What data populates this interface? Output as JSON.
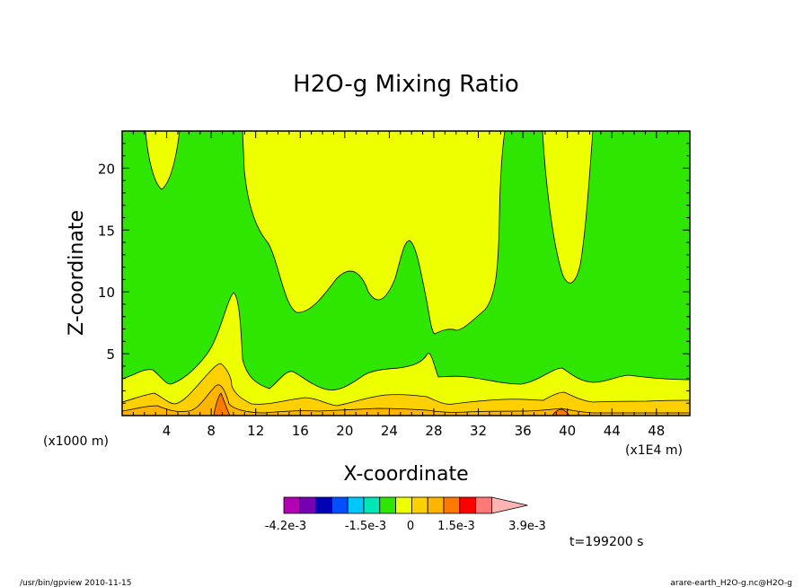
{
  "chart_data": {
    "type": "contour",
    "title": "H2O-g Mixing Ratio",
    "xlabel": "X-coordinate",
    "ylabel": "Z-coordinate",
    "x_unit_note": "(x1E4 m)",
    "y_unit_note": "(x1000 m)",
    "x_ticks": [
      4,
      8,
      12,
      16,
      20,
      24,
      28,
      32,
      36,
      40,
      44,
      48
    ],
    "y_ticks": [
      5,
      10,
      15,
      20
    ],
    "xlim": [
      0,
      51
    ],
    "ylim": [
      0,
      23
    ],
    "colorbar": {
      "colors": [
        "#b400b4",
        "#7800b4",
        "#0000b4",
        "#0050ff",
        "#00c8ff",
        "#00e6b4",
        "#2ee600",
        "#eeff00",
        "#ffd000",
        "#ffb400",
        "#ff7800",
        "#ff0000",
        "#ff7878",
        "#ffb4b4"
      ],
      "labels": [
        "-4.2e-3",
        "-1.5e-3",
        "0",
        "1.5e-3",
        "3.9e-3"
      ]
    },
    "field_colors": {
      "green": "#2ee600",
      "yellow": "#eeff00",
      "gold": "#ffd000",
      "orange": "#ffb400",
      "dark_orange": "#ff7800"
    },
    "time_label": "t=199200 s",
    "footer_left": "/usr/bin/gpview  2010-11-15",
    "footer_right": "arare-earth_H2O-g.nc@H2O-g"
  }
}
